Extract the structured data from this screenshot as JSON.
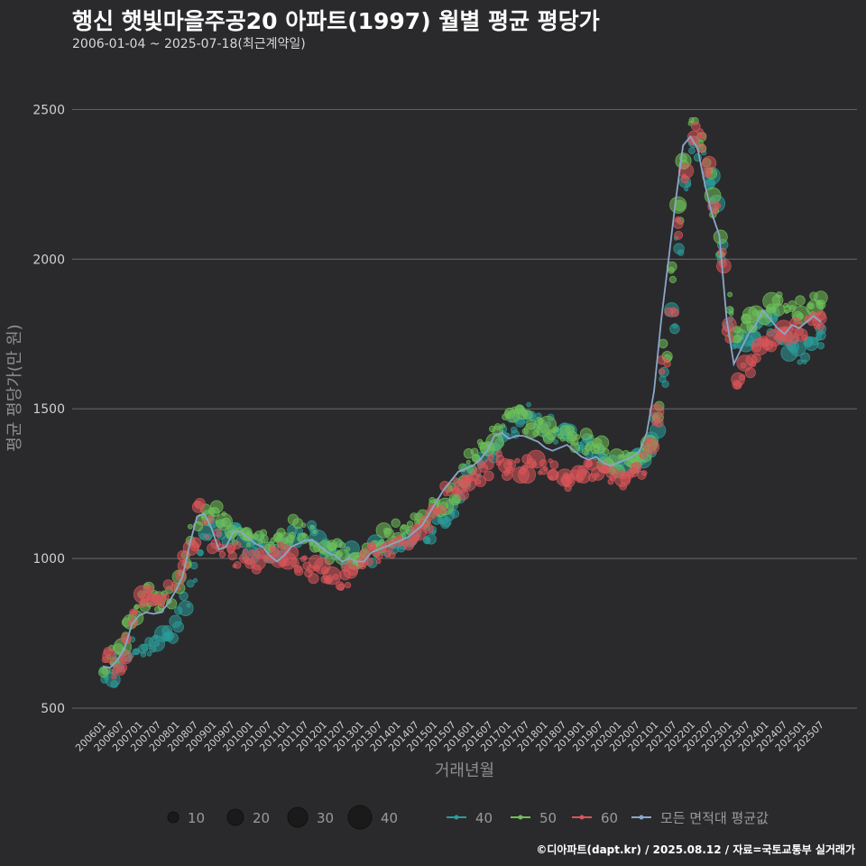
{
  "chart_data": {
    "type": "scatter",
    "title": "행신 햇빛마을주공20 아파트(1997) 월별 평균 평당가",
    "subtitle": "2006-01-04 ~ 2025-07-18(최근계약일)",
    "xlabel": "거래년월",
    "ylabel": "평균 평당가(만 원)",
    "ylim": [
      470,
      2640
    ],
    "yticks": [
      500,
      1000,
      1500,
      2000,
      2500
    ],
    "grid": true,
    "xticks": [
      "200601",
      "200607",
      "200701",
      "200707",
      "200801",
      "200807",
      "200901",
      "200907",
      "201001",
      "201007",
      "201101",
      "201107",
      "201201",
      "201207",
      "201301",
      "201307",
      "201401",
      "201407",
      "201501",
      "201507",
      "201601",
      "201607",
      "201701",
      "201707",
      "201801",
      "201807",
      "201901",
      "201907",
      "202001",
      "202007",
      "202101",
      "202107",
      "202201",
      "202207",
      "202301",
      "202307",
      "202401",
      "202407",
      "202501",
      "202507"
    ],
    "size_legend": [
      10,
      20,
      30,
      40
    ],
    "series": [
      {
        "name": "40",
        "color": "#2a9d9a",
        "values": [
          600,
          610,
          640,
          680,
          700,
          705,
          710,
          720,
          730,
          750,
          800,
          860,
          950,
          1050,
          1100,
          1120,
          1110,
          1090,
          1070,
          1060,
          1040,
          1030,
          1020,
          1030,
          1040,
          1060,
          1080,
          1090,
          1080,
          1060,
          1040,
          1030,
          1020,
          1010,
          1000,
          1005,
          1010,
          1020,
          1030,
          1040,
          1050,
          1060,
          1070,
          1080,
          1090,
          1100,
          1110,
          1130,
          1160,
          1220,
          1280,
          1310,
          1330,
          1350,
          1380,
          1420,
          1450,
          1470,
          1480,
          1490,
          1470,
          1440,
          1420,
          1410,
          1400,
          1390,
          1380,
          1370,
          1360,
          1350,
          1330,
          1310,
          1320,
          1330,
          1340,
          1380,
          1450,
          1600,
          1800,
          2050,
          2250,
          2380,
          2360,
          2280,
          2170,
          2020,
          1800,
          1700,
          1720,
          1740,
          1760,
          1780,
          1790,
          1760,
          1720,
          1700,
          1690,
          1700,
          1720,
          1740
        ]
      },
      {
        "name": "50",
        "color": "#6fbf5a",
        "values": [
          650,
          670,
          700,
          760,
          820,
          860,
          880,
          860,
          850,
          870,
          920,
          980,
          1080,
          1130,
          1150,
          1140,
          1120,
          1100,
          1080,
          1070,
          1060,
          1050,
          1060,
          1070,
          1080,
          1090,
          1100,
          1100,
          1080,
          1060,
          1040,
          1030,
          1020,
          1010,
          1000,
          1010,
          1020,
          1040,
          1060,
          1080,
          1090,
          1100,
          1110,
          1120,
          1140,
          1160,
          1180,
          1200,
          1230,
          1280,
          1330,
          1360,
          1380,
          1400,
          1420,
          1450,
          1470,
          1480,
          1460,
          1450,
          1440,
          1430,
          1420,
          1420,
          1410,
          1400,
          1390,
          1380,
          1360,
          1340,
          1320,
          1310,
          1320,
          1330,
          1350,
          1400,
          1500,
          1700,
          1950,
          2150,
          2350,
          2450,
          2400,
          2300,
          2180,
          2050,
          1850,
          1760,
          1780,
          1800,
          1820,
          1840,
          1860,
          1850,
          1830,
          1820,
          1830,
          1850,
          1870,
          1880
        ]
      },
      {
        "name": "60",
        "color": "#d9555a",
        "values": [
          660,
          640,
          650,
          700,
          800,
          860,
          880,
          870,
          860,
          880,
          920,
          980,
          1070,
          1150,
          1100,
          1060,
          1040,
          1020,
          1010,
          1000,
          990,
          985,
          990,
          1000,
          1010,
          1000,
          990,
          980,
          970,
          960,
          950,
          940,
          930,
          940,
          960,
          980,
          1000,
          1010,
          1020,
          1030,
          1040,
          1050,
          1060,
          1080,
          1100,
          1140,
          1180,
          1210,
          1230,
          1240,
          1250,
          1270,
          1290,
          1310,
          1320,
          1300,
          1290,
          1300,
          1310,
          1320,
          1310,
          1300,
          1290,
          1280,
          1270,
          1280,
          1290,
          1300,
          1310,
          1280,
          1260,
          1250,
          1260,
          1280,
          1310,
          1380,
          1480,
          1650,
          1850,
          2100,
          2300,
          2420,
          2400,
          2300,
          2150,
          2000,
          1750,
          1600,
          1620,
          1650,
          1680,
          1700,
          1720,
          1740,
          1750,
          1760,
          1770,
          1780,
          1790,
          1800
        ]
      },
      {
        "name": "모든 면적대 평균값",
        "color": "#8aa7c9",
        "values": [
          640,
          635,
          660,
          700,
          780,
          810,
          820,
          815,
          820,
          850,
          890,
          940,
          1050,
          1140,
          1150,
          1100,
          1030,
          1040,
          1090,
          1090,
          1070,
          1050,
          1040,
          1010,
          990,
          1010,
          1040,
          1050,
          1060,
          1060,
          1040,
          1020,
          1010,
          990,
          1000,
          990,
          990,
          1020,
          1030,
          1040,
          1050,
          1060,
          1070,
          1090,
          1110,
          1150,
          1190,
          1230,
          1260,
          1290,
          1300,
          1310,
          1330,
          1360,
          1410,
          1420,
          1400,
          1410,
          1410,
          1400,
          1390,
          1370,
          1360,
          1370,
          1380,
          1360,
          1340,
          1330,
          1340,
          1320,
          1310,
          1320,
          1330,
          1340,
          1360,
          1420,
          1560,
          1800,
          2000,
          2200,
          2380,
          2410,
          2370,
          2250,
          2150,
          2080,
          1800,
          1650,
          1700,
          1750,
          1780,
          1830,
          1800,
          1770,
          1750,
          1780,
          1770,
          1790,
          1810,
          1790
        ]
      }
    ]
  }
}
